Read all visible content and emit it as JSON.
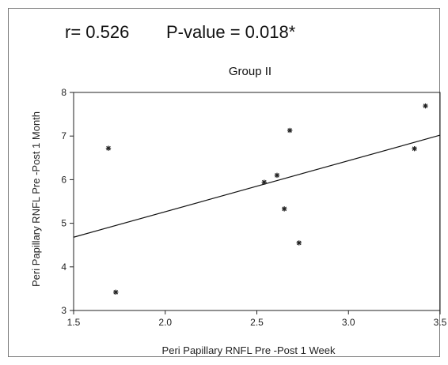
{
  "annotations": {
    "r_text": "r= 0.526",
    "p_text": "P-value = 0.018*"
  },
  "chart_data": {
    "type": "scatter",
    "title": "Group II",
    "xlabel": "Peri Papillary RNFL Pre -Post 1 Week",
    "ylabel": "Peri Papillary RNFL Pre -Post 1 Month",
    "xlim": [
      1.5,
      3.5
    ],
    "ylim": [
      3,
      8
    ],
    "xticks": [
      {
        "value": 1.5,
        "label": "1.5"
      },
      {
        "value": 2.0,
        "label": "2.0"
      },
      {
        "value": 2.5,
        "label": "2.5"
      },
      {
        "value": 3.0,
        "label": "3.0"
      },
      {
        "value": 3.5,
        "label": "3.5"
      }
    ],
    "yticks": [
      {
        "value": 3,
        "label": "3"
      },
      {
        "value": 4,
        "label": "4"
      },
      {
        "value": 5,
        "label": "5"
      },
      {
        "value": 6,
        "label": "6"
      },
      {
        "value": 7,
        "label": "7"
      },
      {
        "value": 8,
        "label": "8"
      }
    ],
    "grid": false,
    "marker": "asterisk",
    "points": [
      {
        "x": 1.69,
        "y": 6.72
      },
      {
        "x": 1.73,
        "y": 3.42
      },
      {
        "x": 2.54,
        "y": 5.94
      },
      {
        "x": 2.61,
        "y": 6.1
      },
      {
        "x": 2.65,
        "y": 5.33
      },
      {
        "x": 2.68,
        "y": 7.13
      },
      {
        "x": 2.73,
        "y": 4.55
      },
      {
        "x": 3.36,
        "y": 6.71
      },
      {
        "x": 3.42,
        "y": 7.69
      }
    ],
    "fit_line": {
      "x": [
        1.5,
        3.5
      ],
      "y": [
        4.68,
        7.02
      ]
    },
    "colors": {
      "marker": "#222222",
      "line": "#111111",
      "axis": "#222222"
    }
  }
}
